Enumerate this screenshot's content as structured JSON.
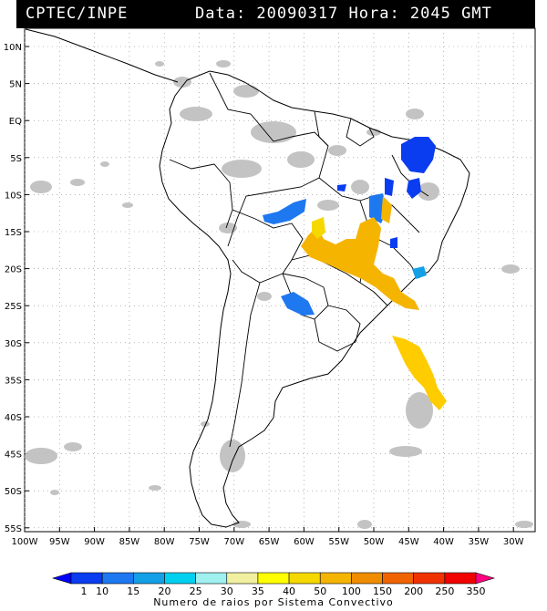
{
  "header": {
    "source": "CPTEC/INPE",
    "timestamp": "Data: 20090317 Hora: 2045 GMT"
  },
  "axes": {
    "lat_labels": [
      "10N",
      "5N",
      "EQ",
      "5S",
      "10S",
      "15S",
      "20S",
      "25S",
      "30S",
      "35S",
      "40S",
      "45S",
      "50S",
      "55S"
    ],
    "lon_labels": [
      "100W",
      "95W",
      "90W",
      "85W",
      "80W",
      "75W",
      "70W",
      "65W",
      "60W",
      "55W",
      "50W",
      "45W",
      "40W",
      "35W",
      "30W"
    ]
  },
  "colorbar": {
    "title": "Numero de raios por Sistema Convectivo",
    "ticks": [
      "1",
      "10",
      "15",
      "20",
      "25",
      "30",
      "35",
      "40",
      "50",
      "100",
      "150",
      "200",
      "250",
      "350"
    ],
    "colors": [
      "#0000ff",
      "#0a3cf0",
      "#1e78f0",
      "#14a0e6",
      "#00d0f0",
      "#a0f0f0",
      "#f0f0a0",
      "#ffff00",
      "#f5d800",
      "#f5b400",
      "#f08c00",
      "#f06400",
      "#f03200",
      "#f00000",
      "#ff0080"
    ]
  },
  "cloud_color": "#bebebe",
  "border_color": "#000000"
}
